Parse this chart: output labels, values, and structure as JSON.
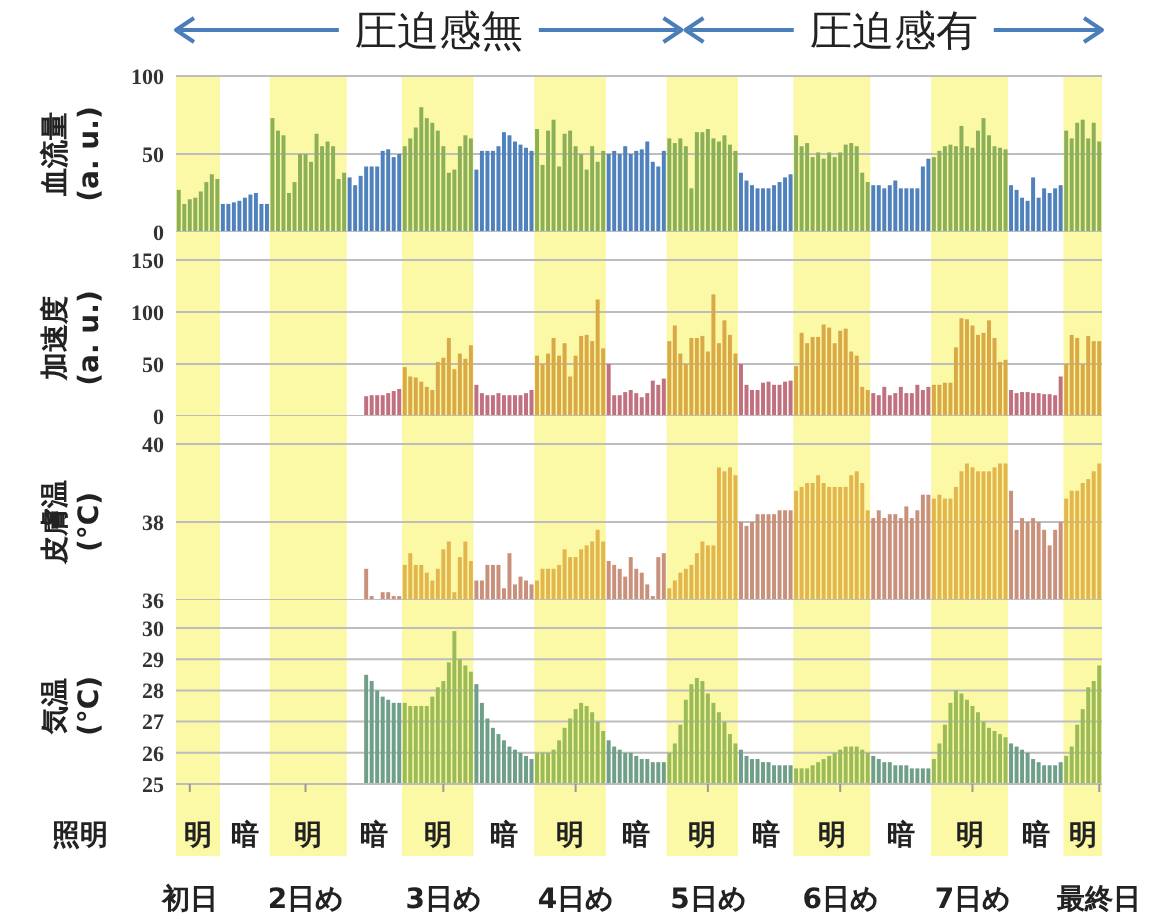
{
  "chart_data": [
    {
      "type": "bar",
      "annotations": [
        "圧迫感無",
        "圧迫感有"
      ],
      "ylabel": "血流量\n(a. u.)",
      "ylim": [
        0,
        100
      ],
      "yticks": [
        0,
        50,
        100
      ],
      "grid": "y",
      "tick_labels": "y",
      "categories": [
        null,
        null,
        null,
        null,
        null,
        null,
        null,
        null,
        null,
        null,
        null,
        null,
        null,
        null,
        null,
        null,
        null,
        null,
        null,
        null,
        null,
        null,
        null,
        null,
        null,
        null,
        null,
        null,
        null,
        null,
        null,
        null,
        null,
        null,
        null,
        null,
        null,
        null,
        null,
        null,
        null,
        null,
        null,
        null,
        null,
        null,
        null,
        null,
        null,
        null,
        null,
        null,
        null,
        null,
        null,
        null,
        null,
        null,
        null,
        null,
        null,
        null,
        null,
        null,
        null,
        null,
        null,
        null,
        null,
        null,
        null,
        null,
        null,
        null,
        null,
        null,
        null,
        null,
        null,
        null,
        null,
        null,
        null,
        null,
        null,
        null,
        null,
        null,
        null,
        null,
        null,
        null,
        null,
        null,
        null,
        null,
        null,
        null,
        null,
        null,
        null,
        null,
        null,
        null,
        null,
        null,
        null,
        null,
        null,
        null,
        null,
        null,
        null,
        null,
        null,
        null,
        null,
        null,
        null,
        null,
        null,
        null,
        null,
        null,
        null,
        null,
        null,
        null,
        null,
        null,
        null,
        null,
        null,
        null,
        null,
        null,
        null,
        null,
        null,
        null,
        null,
        null,
        null,
        null,
        null,
        null,
        null,
        null,
        null,
        null,
        null,
        null,
        null,
        null,
        null,
        null,
        null,
        null,
        null,
        null,
        null,
        null,
        null,
        null,
        null,
        null,
        null,
        null
      ],
      "series": [
        {
          "color": "#8cb05a",
          "values": [
            27,
            18,
            21,
            22,
            26,
            32,
            37,
            34,
            null,
            null,
            null,
            null,
            null,
            null,
            null,
            null,
            null,
            73,
            65,
            62,
            25,
            32,
            50,
            50,
            45,
            63,
            55,
            58,
            55,
            34,
            38,
            null,
            null,
            null,
            null,
            null,
            null,
            null,
            null,
            null,
            null,
            55,
            60,
            67,
            80,
            73,
            70,
            65,
            55,
            38,
            40,
            55,
            62,
            60,
            null,
            null,
            null,
            null,
            null,
            null,
            null,
            null,
            null,
            null,
            null,
            66,
            43,
            65,
            72,
            42,
            63,
            65,
            55,
            50,
            40,
            55,
            45,
            52,
            null,
            null,
            null,
            null,
            null,
            null,
            null,
            null,
            null,
            null,
            null,
            60,
            57,
            60,
            55,
            28,
            64,
            64,
            66,
            60,
            58,
            62,
            56,
            52,
            null,
            null,
            null,
            null,
            null,
            null,
            null,
            null,
            null,
            null,
            62,
            55,
            57,
            48,
            51,
            47,
            51,
            48,
            51,
            56,
            57,
            55,
            38,
            32,
            null,
            null,
            null,
            null,
            null,
            null,
            null,
            null,
            null,
            null,
            null,
            48,
            52,
            55,
            56,
            55,
            68,
            55,
            54,
            65,
            73,
            62,
            55,
            54,
            53,
            null,
            null,
            null,
            null,
            null,
            null,
            null,
            null,
            null,
            null,
            65,
            60,
            70,
            72,
            60,
            70,
            58
          ]
        },
        {
          "color": "#4f81bd",
          "values": [
            null,
            null,
            null,
            null,
            null,
            null,
            null,
            null,
            18,
            18,
            19,
            20,
            22,
            24,
            25,
            18,
            18,
            null,
            null,
            null,
            null,
            null,
            null,
            null,
            null,
            null,
            null,
            null,
            null,
            null,
            null,
            35,
            30,
            36,
            42,
            42,
            42,
            52,
            53,
            48,
            50,
            null,
            null,
            null,
            null,
            null,
            null,
            null,
            null,
            null,
            null,
            null,
            null,
            null,
            40,
            52,
            52,
            52,
            55,
            64,
            62,
            58,
            56,
            54,
            52,
            null,
            null,
            null,
            null,
            null,
            null,
            null,
            null,
            null,
            null,
            null,
            null,
            null,
            50,
            52,
            50,
            55,
            50,
            52,
            53,
            58,
            45,
            42,
            52,
            null,
            null,
            null,
            null,
            null,
            null,
            null,
            null,
            null,
            null,
            null,
            null,
            null,
            38,
            33,
            30,
            28,
            28,
            28,
            30,
            32,
            35,
            37,
            null,
            null,
            null,
            null,
            null,
            null,
            null,
            null,
            null,
            null,
            null,
            null,
            null,
            null,
            30,
            30,
            28,
            30,
            33,
            28,
            28,
            28,
            28,
            42,
            47,
            null,
            null,
            null,
            null,
            null,
            null,
            null,
            null,
            null,
            null,
            null,
            null,
            null,
            null,
            30,
            27,
            22,
            20,
            35,
            22,
            28,
            25,
            28,
            30,
            null,
            null,
            null,
            null,
            null,
            null,
            null
          ]
        }
      ]
    },
    {
      "type": "bar",
      "ylabel": "加速度\n(a. u.)",
      "ylim": [
        0,
        150
      ],
      "yticks": [
        0,
        50,
        100,
        150
      ],
      "grid": "y",
      "tick_labels": "y",
      "categories": [
        null,
        null,
        null,
        null,
        null,
        null,
        null,
        null,
        null,
        null,
        null,
        null,
        null,
        null,
        null,
        null,
        null,
        null,
        null,
        null,
        null,
        null,
        null,
        null,
        null,
        null,
        null,
        null,
        null,
        null,
        null,
        null,
        null,
        null,
        null,
        null,
        null,
        null,
        null,
        null,
        null,
        null,
        null,
        null,
        null,
        null,
        null,
        null,
        null,
        null,
        null,
        null,
        null,
        null,
        null,
        null,
        null,
        null,
        null,
        null,
        null,
        null,
        null,
        null,
        null,
        null,
        null,
        null,
        null,
        null,
        null,
        null,
        null,
        null,
        null,
        null,
        null,
        null,
        null,
        null,
        null,
        null,
        null,
        null,
        null,
        null,
        null,
        null,
        null,
        null,
        null,
        null,
        null,
        null,
        null,
        null,
        null,
        null,
        null,
        null,
        null,
        null,
        null,
        null,
        null,
        null,
        null,
        null,
        null,
        null,
        null,
        null,
        null,
        null,
        null,
        null,
        null,
        null,
        null,
        null,
        null,
        null,
        null,
        null,
        null,
        null,
        null,
        null,
        null,
        null,
        null,
        null,
        null,
        null,
        null,
        null,
        null,
        null,
        null,
        null,
        null,
        null,
        null,
        null,
        null,
        null,
        null,
        null,
        null,
        null,
        null,
        null,
        null,
        null,
        null,
        null,
        null,
        null,
        null,
        null,
        null,
        null,
        null,
        null,
        null,
        null,
        null,
        null
      ],
      "series": [
        {
          "color": "#d9a847",
          "values": [
            null,
            null,
            null,
            null,
            null,
            null,
            null,
            null,
            null,
            null,
            null,
            null,
            null,
            null,
            null,
            null,
            null,
            null,
            null,
            null,
            null,
            null,
            null,
            null,
            null,
            null,
            null,
            null,
            null,
            null,
            null,
            null,
            null,
            null,
            null,
            null,
            null,
            null,
            null,
            null,
            null,
            47,
            38,
            37,
            33,
            28,
            25,
            52,
            56,
            75,
            45,
            60,
            55,
            68,
            null,
            null,
            null,
            null,
            null,
            null,
            null,
            null,
            null,
            null,
            null,
            58,
            50,
            60,
            75,
            58,
            70,
            38,
            58,
            77,
            78,
            72,
            112,
            65,
            null,
            null,
            null,
            null,
            null,
            null,
            null,
            null,
            null,
            null,
            null,
            72,
            87,
            60,
            50,
            75,
            75,
            77,
            62,
            117,
            70,
            92,
            78,
            60,
            null,
            null,
            null,
            null,
            null,
            null,
            null,
            null,
            null,
            null,
            48,
            80,
            70,
            76,
            76,
            88,
            85,
            70,
            82,
            84,
            62,
            58,
            28,
            25,
            null,
            null,
            null,
            null,
            null,
            null,
            null,
            null,
            null,
            null,
            null,
            30,
            30,
            32,
            32,
            66,
            94,
            93,
            87,
            78,
            80,
            92,
            75,
            52,
            54,
            null,
            null,
            null,
            null,
            null,
            null,
            null,
            null,
            null,
            null,
            50,
            78,
            75,
            50,
            77,
            72,
            72
          ]
        },
        {
          "color": "#c0707f",
          "values": [
            null,
            null,
            null,
            null,
            null,
            null,
            null,
            null,
            null,
            null,
            null,
            null,
            null,
            null,
            null,
            null,
            null,
            null,
            null,
            null,
            null,
            null,
            null,
            null,
            null,
            null,
            null,
            null,
            null,
            null,
            null,
            null,
            null,
            null,
            19,
            20,
            20,
            20,
            22,
            24,
            26,
            null,
            null,
            null,
            null,
            null,
            null,
            null,
            null,
            null,
            null,
            null,
            null,
            null,
            30,
            22,
            20,
            20,
            22,
            20,
            20,
            20,
            20,
            22,
            25,
            null,
            null,
            null,
            null,
            null,
            null,
            null,
            null,
            null,
            null,
            null,
            null,
            null,
            50,
            20,
            20,
            23,
            25,
            22,
            18,
            22,
            34,
            30,
            36,
            null,
            null,
            null,
            null,
            null,
            null,
            null,
            null,
            null,
            null,
            null,
            null,
            null,
            50,
            30,
            25,
            25,
            32,
            33,
            30,
            30,
            33,
            34,
            null,
            null,
            null,
            null,
            null,
            null,
            null,
            null,
            null,
            null,
            null,
            null,
            null,
            null,
            22,
            20,
            28,
            20,
            22,
            28,
            22,
            22,
            30,
            25,
            28,
            null,
            null,
            null,
            null,
            null,
            null,
            null,
            null,
            null,
            null,
            null,
            null,
            null,
            null,
            25,
            22,
            23,
            23,
            22,
            22,
            21,
            21,
            20,
            38,
            null,
            null,
            null,
            null,
            null,
            null,
            null
          ]
        }
      ]
    },
    {
      "type": "bar",
      "ylabel": "皮膚温\n(°C)",
      "ylim": [
        36,
        40
      ],
      "yticks": [
        36,
        38,
        40
      ],
      "grid": "y",
      "tick_labels": "y",
      "categories": [
        null,
        null,
        null,
        null,
        null,
        null,
        null,
        null,
        null,
        null,
        null,
        null,
        null,
        null,
        null,
        null,
        null,
        null,
        null,
        null,
        null,
        null,
        null,
        null,
        null,
        null,
        null,
        null,
        null,
        null,
        null,
        null,
        null,
        null,
        null,
        null,
        null,
        null,
        null,
        null,
        null,
        null,
        null,
        null,
        null,
        null,
        null,
        null,
        null,
        null,
        null,
        null,
        null,
        null,
        null,
        null,
        null,
        null,
        null,
        null,
        null,
        null,
        null,
        null,
        null,
        null,
        null,
        null,
        null,
        null,
        null,
        null,
        null,
        null,
        null,
        null,
        null,
        null,
        null,
        null,
        null,
        null,
        null,
        null,
        null,
        null,
        null,
        null,
        null,
        null,
        null,
        null,
        null,
        null,
        null,
        null,
        null,
        null,
        null,
        null,
        null,
        null,
        null,
        null,
        null,
        null,
        null,
        null,
        null,
        null,
        null,
        null,
        null,
        null,
        null,
        null,
        null,
        null,
        null,
        null,
        null,
        null,
        null,
        null,
        null,
        null,
        null,
        null,
        null,
        null,
        null,
        null,
        null,
        null,
        null,
        null,
        null,
        null,
        null,
        null,
        null,
        null,
        null,
        null,
        null,
        null,
        null,
        null,
        null,
        null,
        null,
        null,
        null,
        null,
        null,
        null,
        null,
        null,
        null,
        null,
        null,
        null,
        null,
        null,
        null,
        null,
        null,
        null
      ],
      "series": [
        {
          "color": "#e2b54f",
          "values": [
            null,
            null,
            null,
            null,
            null,
            null,
            null,
            null,
            null,
            null,
            null,
            null,
            null,
            null,
            null,
            null,
            null,
            null,
            null,
            null,
            null,
            null,
            null,
            null,
            null,
            null,
            null,
            null,
            null,
            null,
            null,
            null,
            null,
            null,
            null,
            null,
            null,
            null,
            null,
            null,
            null,
            36.9,
            37.2,
            36.9,
            36.9,
            36.7,
            36.5,
            36.8,
            37.3,
            37.5,
            36.2,
            37.1,
            37.5,
            37.0,
            null,
            null,
            null,
            null,
            null,
            null,
            null,
            null,
            null,
            null,
            null,
            36.5,
            36.8,
            36.8,
            36.8,
            36.9,
            37.3,
            37.1,
            37.1,
            37.3,
            37.4,
            37.5,
            37.8,
            37.5,
            null,
            null,
            null,
            null,
            null,
            null,
            null,
            null,
            null,
            null,
            null,
            36.3,
            36.5,
            36.7,
            36.8,
            36.9,
            37.2,
            37.5,
            37.4,
            37.4,
            39.4,
            39.3,
            39.4,
            39.2,
            null,
            null,
            null,
            null,
            null,
            null,
            null,
            null,
            null,
            null,
            38.8,
            38.9,
            39.0,
            39.0,
            39.2,
            39.0,
            38.9,
            38.9,
            38.9,
            38.9,
            39.2,
            39.3,
            39.0,
            38.3,
            null,
            null,
            null,
            null,
            null,
            null,
            null,
            null,
            null,
            null,
            null,
            38.6,
            38.7,
            38.6,
            38.6,
            38.9,
            39.3,
            39.5,
            39.4,
            39.3,
            39.3,
            39.3,
            39.4,
            39.5,
            39.5,
            null,
            null,
            null,
            null,
            null,
            null,
            null,
            null,
            null,
            null,
            38.6,
            38.8,
            38.8,
            39.0,
            39.1,
            39.3,
            39.5
          ]
        },
        {
          "color": "#c9907c",
          "values": [
            null,
            null,
            null,
            null,
            null,
            null,
            null,
            null,
            null,
            null,
            null,
            null,
            null,
            null,
            null,
            null,
            null,
            null,
            null,
            null,
            null,
            null,
            null,
            null,
            null,
            null,
            null,
            null,
            null,
            null,
            null,
            null,
            null,
            null,
            36.8,
            36.1,
            36.0,
            36.2,
            36.2,
            36.1,
            36.1,
            null,
            null,
            null,
            null,
            null,
            null,
            null,
            null,
            null,
            null,
            null,
            null,
            null,
            36.5,
            36.5,
            36.9,
            36.9,
            36.9,
            36.3,
            37.2,
            36.4,
            36.6,
            36.5,
            36.4,
            null,
            null,
            null,
            null,
            null,
            null,
            null,
            null,
            null,
            null,
            null,
            null,
            null,
            37.0,
            36.9,
            36.8,
            36.6,
            37.1,
            36.8,
            36.7,
            36.4,
            36.1,
            37.1,
            37.2,
            null,
            null,
            null,
            null,
            null,
            null,
            null,
            null,
            null,
            null,
            null,
            null,
            null,
            38.0,
            37.9,
            38.0,
            38.2,
            38.2,
            38.2,
            38.2,
            38.3,
            38.3,
            38.3,
            null,
            null,
            null,
            null,
            null,
            null,
            null,
            null,
            null,
            null,
            null,
            null,
            null,
            null,
            38.1,
            38.3,
            38.1,
            38.2,
            38.2,
            38.1,
            38.4,
            38.1,
            38.3,
            38.7,
            38.7,
            null,
            null,
            null,
            null,
            null,
            null,
            null,
            null,
            null,
            null,
            null,
            null,
            null,
            null,
            38.8,
            37.8,
            38.1,
            38.0,
            38.1,
            38.0,
            37.8,
            37.4,
            37.8,
            38.0,
            null,
            null,
            null,
            null,
            null,
            null,
            null
          ]
        }
      ]
    },
    {
      "type": "bar",
      "annotations": [
        "照明",
        "明",
        "暗",
        "明",
        "暗",
        "明",
        "暗",
        "明",
        "暗",
        "明",
        "暗",
        "明",
        "暗",
        "明",
        "暗",
        "明"
      ],
      "ylabel": "気温\n(°C)",
      "ylim": [
        25,
        30
      ],
      "yticks": [
        25,
        26,
        27,
        28,
        29,
        30
      ],
      "grid": "y",
      "categories": [
        null,
        null,
        "初日",
        null,
        null,
        null,
        null,
        null,
        null,
        null,
        null,
        null,
        null,
        null,
        null,
        null,
        null,
        null,
        null,
        null,
        null,
        null,
        null,
        "2日め",
        null,
        null,
        null,
        null,
        null,
        null,
        null,
        null,
        null,
        null,
        null,
        null,
        null,
        null,
        null,
        null,
        null,
        null,
        null,
        null,
        null,
        null,
        null,
        null,
        "3日め",
        null,
        null,
        null,
        null,
        null,
        null,
        null,
        null,
        null,
        null,
        null,
        null,
        null,
        null,
        null,
        null,
        null,
        null,
        null,
        null,
        null,
        null,
        null,
        "4日め",
        null,
        null,
        null,
        null,
        null,
        null,
        null,
        null,
        null,
        null,
        null,
        null,
        null,
        null,
        null,
        null,
        null,
        null,
        null,
        null,
        null,
        null,
        null,
        "5日め",
        null,
        null,
        null,
        null,
        null,
        null,
        null,
        null,
        null,
        null,
        null,
        null,
        null,
        null,
        null,
        null,
        null,
        null,
        null,
        null,
        null,
        null,
        null,
        "6日め",
        null,
        null,
        null,
        null,
        null,
        null,
        null,
        null,
        null,
        null,
        null,
        null,
        null,
        null,
        null,
        null,
        null,
        null,
        null,
        null,
        null,
        null,
        null,
        "7日め",
        null,
        null,
        null,
        null,
        null,
        null,
        null,
        null,
        null,
        null,
        null,
        null,
        null,
        null,
        null,
        null,
        null,
        null,
        null,
        null,
        null,
        null,
        "最終日"
      ],
      "series": [
        {
          "color": "#9bbb59",
          "values": [
            null,
            null,
            null,
            null,
            null,
            null,
            null,
            null,
            null,
            null,
            null,
            null,
            null,
            null,
            null,
            null,
            null,
            null,
            null,
            null,
            null,
            null,
            null,
            null,
            null,
            null,
            null,
            null,
            null,
            null,
            null,
            null,
            null,
            null,
            null,
            null,
            null,
            null,
            null,
            null,
            null,
            27.6,
            27.5,
            27.5,
            27.5,
            27.5,
            27.8,
            28.1,
            28.3,
            28.9,
            29.9,
            29.0,
            28.8,
            28.6,
            null,
            null,
            null,
            null,
            null,
            null,
            null,
            null,
            null,
            null,
            null,
            26.0,
            26.0,
            26.0,
            26.1,
            26.4,
            26.8,
            27.1,
            27.4,
            27.6,
            27.5,
            27.3,
            27.0,
            26.7,
            null,
            null,
            null,
            null,
            null,
            null,
            null,
            null,
            null,
            null,
            null,
            26.0,
            26.3,
            26.9,
            27.7,
            28.2,
            28.4,
            28.3,
            27.9,
            27.6,
            27.3,
            27.0,
            26.6,
            26.3,
            null,
            null,
            null,
            null,
            null,
            null,
            null,
            null,
            null,
            null,
            25.5,
            25.5,
            25.5,
            25.6,
            25.7,
            25.8,
            25.9,
            26.0,
            26.1,
            26.2,
            26.2,
            26.2,
            26.1,
            26.0,
            null,
            null,
            null,
            null,
            null,
            null,
            null,
            null,
            null,
            null,
            null,
            25.8,
            26.3,
            26.9,
            27.6,
            28.0,
            27.9,
            27.7,
            27.5,
            27.3,
            27.0,
            26.8,
            26.7,
            26.6,
            26.5,
            null,
            null,
            null,
            null,
            null,
            null,
            null,
            null,
            null,
            null,
            25.9,
            26.2,
            26.9,
            27.4,
            28.1,
            28.3,
            28.8
          ]
        },
        {
          "color": "#6f9f88",
          "values": [
            null,
            null,
            null,
            null,
            null,
            null,
            null,
            null,
            null,
            null,
            null,
            null,
            null,
            null,
            null,
            null,
            null,
            null,
            null,
            null,
            null,
            null,
            null,
            null,
            null,
            null,
            null,
            null,
            null,
            null,
            null,
            null,
            null,
            null,
            28.5,
            28.3,
            28.0,
            27.8,
            27.7,
            27.6,
            27.6,
            null,
            null,
            null,
            null,
            null,
            null,
            null,
            null,
            null,
            null,
            null,
            null,
            null,
            28.2,
            27.6,
            27.1,
            26.8,
            26.6,
            26.4,
            26.2,
            26.1,
            26.0,
            25.9,
            25.8,
            null,
            null,
            null,
            null,
            null,
            null,
            null,
            null,
            null,
            null,
            null,
            null,
            null,
            26.4,
            26.2,
            26.1,
            26.0,
            26.0,
            25.9,
            25.8,
            25.8,
            25.7,
            25.7,
            25.7,
            null,
            null,
            null,
            null,
            null,
            null,
            null,
            null,
            null,
            null,
            null,
            null,
            null,
            26.1,
            25.9,
            25.8,
            25.8,
            25.7,
            25.7,
            25.6,
            25.6,
            25.6,
            25.6,
            null,
            null,
            null,
            null,
            null,
            null,
            null,
            null,
            null,
            null,
            null,
            null,
            null,
            null,
            25.9,
            25.8,
            25.7,
            25.7,
            25.6,
            25.6,
            25.6,
            25.5,
            25.5,
            25.5,
            25.5,
            null,
            null,
            null,
            null,
            null,
            null,
            null,
            null,
            null,
            null,
            null,
            null,
            null,
            null,
            26.3,
            26.2,
            26.1,
            26.0,
            25.8,
            25.7,
            25.6,
            25.6,
            25.6,
            25.7,
            null,
            null,
            null,
            null,
            null,
            null,
            null
          ]
        }
      ]
    }
  ]
}
